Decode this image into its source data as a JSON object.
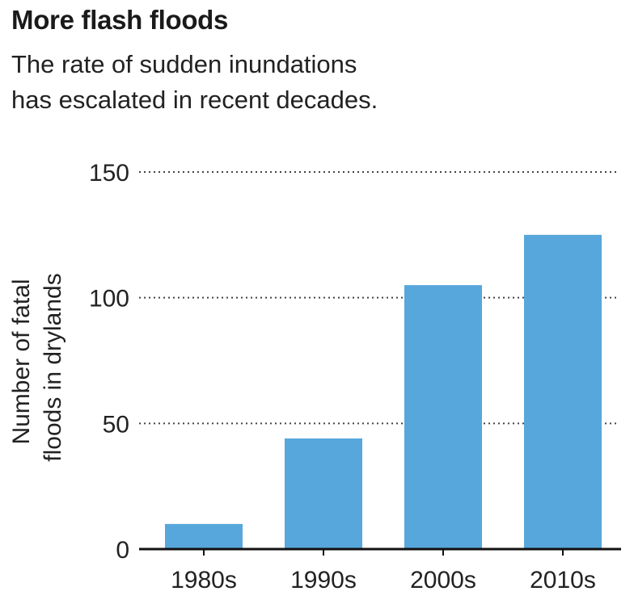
{
  "title": "More flash floods",
  "subtitle": [
    "The rate of sudden inundations",
    "has escalated in recent decades."
  ],
  "chart_data": {
    "type": "bar",
    "categories": [
      "1980s",
      "1990s",
      "2000s",
      "2010s"
    ],
    "values": [
      10,
      44,
      105,
      125
    ],
    "ylabel": [
      "Number of fatal",
      "floods in drylands"
    ],
    "ylim": [
      0,
      150
    ],
    "yticks": [
      0,
      50,
      100,
      150
    ],
    "grid": "dotted horizontal",
    "bar_color": "#57a7dc",
    "axis_color": "#111111",
    "grid_color": "#444444"
  }
}
